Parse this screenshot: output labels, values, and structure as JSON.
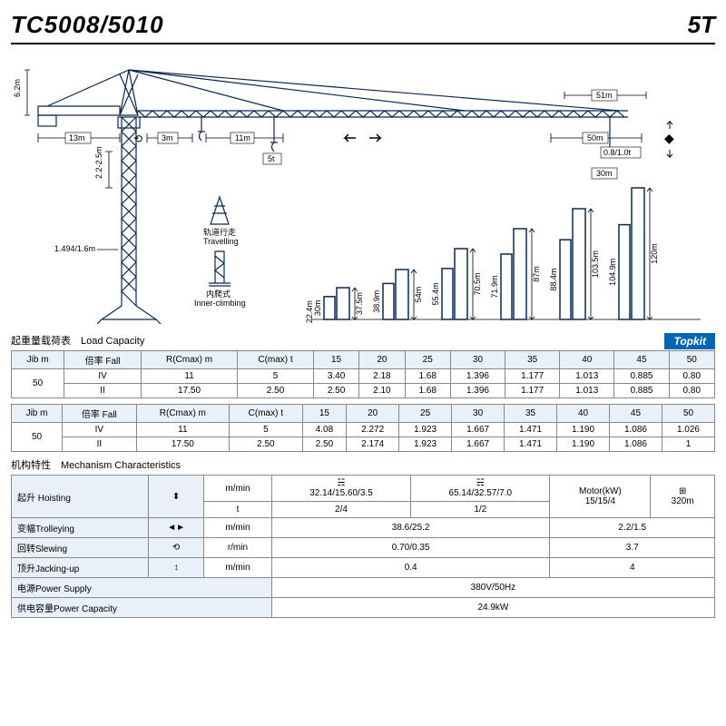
{
  "header": {
    "model": "TC5008/5010",
    "capacity": "5T"
  },
  "diagram": {
    "dims": {
      "top_height": "6.2m",
      "counter_jib": "13m",
      "apex_to_trolley1": "3m",
      "trolley_span": "11m",
      "hook_load": "5t",
      "jib_end": "51m",
      "jib_end2": "50m",
      "tip_load": "0.8/1.0t",
      "radius_end": "30m",
      "mast_section": "2.2-2.5m",
      "base_width": "1.494/1.6m",
      "travelling": "轨道行走",
      "travelling_en": "Travelling",
      "climbing": "内爬式",
      "climbing_en": "Inner-climbing"
    },
    "heights": [
      {
        "free": "30m",
        "anch": "22.4m",
        "top": "37.5m"
      },
      {
        "free": "38.9m",
        "anch": "",
        "top": "54m"
      },
      {
        "free": "55.4m",
        "anch": "",
        "top": "70.5m"
      },
      {
        "free": "71.9m",
        "anch": "",
        "top": "87m"
      },
      {
        "free": "88.4m",
        "anch": "",
        "top": "103.5m"
      },
      {
        "free": "104.9m",
        "anch": "",
        "top": "120m"
      }
    ]
  },
  "load_table_title": "起重量载荷表　Load Capacity",
  "topkit": "Topkit",
  "load_headers": [
    "Jib m",
    "倍率 Fall",
    "R(Cmax) m",
    "C(max) t",
    "15",
    "20",
    "25",
    "30",
    "35",
    "40",
    "45",
    "50"
  ],
  "load_table1": [
    [
      "50",
      "IV",
      "11",
      "5",
      "3.40",
      "2.18",
      "1.68",
      "1.396",
      "1.177",
      "1.013",
      "0.885",
      "0.80"
    ],
    [
      "",
      "II",
      "17.50",
      "2.50",
      "2.50",
      "2.10",
      "1.68",
      "1.396",
      "1.177",
      "1.013",
      "0.885",
      "0.80"
    ]
  ],
  "load_table2": [
    [
      "50",
      "IV",
      "11",
      "5",
      "4.08",
      "2.272",
      "1.923",
      "1.667",
      "1.471",
      "1.190",
      "1.086",
      "1.026"
    ],
    [
      "",
      "II",
      "17.50",
      "2.50",
      "2.50",
      "2.174",
      "1.923",
      "1.667",
      "1.471",
      "1.190",
      "1.086",
      "1"
    ]
  ],
  "mech_title": "机构特性　Mechanism Characteristics",
  "mech": {
    "hoisting": {
      "label": "起升 Hoisting",
      "unit_speed": "m/min",
      "unit_t": "t",
      "s1": "32.14/15.60/3.5",
      "t1": "2/4",
      "s2": "65.14/32.57/7.0",
      "t2": "1/2",
      "motor": "15/15/4",
      "drum": "320m"
    },
    "trolleying": {
      "label": "变幅Trolleying",
      "unit": "m/min",
      "val": "38.6/25.2",
      "motor": "2.2/1.5"
    },
    "slewing": {
      "label": "回转Slewing",
      "unit": "r/min",
      "val": "0.70/0.35",
      "motor": "3.7"
    },
    "jacking": {
      "label": "顶升Jacking-up",
      "unit": "m/min",
      "val": "0.4",
      "motor": "4"
    },
    "power_supply": {
      "label": "电源Power Supply",
      "val": "380V/50Hz"
    },
    "power_cap": {
      "label": "供电容量Power Capacity",
      "val": "24.9kW"
    },
    "motor_h": "Motor(kW)"
  }
}
